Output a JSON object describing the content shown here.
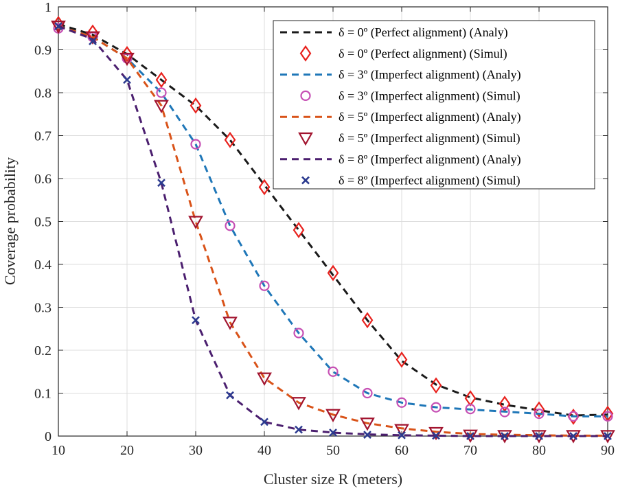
{
  "chart_data": {
    "type": "line",
    "xlabel": "Cluster size R (meters)",
    "ylabel": "Coverage probability",
    "xlim": [
      10,
      90
    ],
    "ylim": [
      0,
      1
    ],
    "grid": true,
    "legend_position": "top-right",
    "x_ticks": [
      "10",
      "20",
      "30",
      "40",
      "50",
      "60",
      "70",
      "80",
      "90"
    ],
    "y_ticks": [
      "0",
      "0.1",
      "0.2",
      "0.3",
      "0.4",
      "0.5",
      "0.6",
      "0.7",
      "0.8",
      "0.9",
      "1"
    ],
    "x": [
      10,
      15,
      20,
      25,
      30,
      35,
      40,
      45,
      50,
      55,
      60,
      65,
      70,
      75,
      80,
      85,
      90
    ],
    "series": [
      {
        "name": "δ = 0º (Perfect alignment) (Analy)",
        "style": "dashed",
        "color": "#1a1a1a",
        "values": [
          0.96,
          0.935,
          0.89,
          0.83,
          0.77,
          0.69,
          0.585,
          0.48,
          0.375,
          0.27,
          0.175,
          0.12,
          0.09,
          0.073,
          0.06,
          0.048,
          0.05
        ]
      },
      {
        "name": "δ = 0º (Perfect alignment) (Simul)",
        "style": "marker",
        "marker": "diamond",
        "color": "#e8201c",
        "values": [
          0.96,
          0.94,
          0.89,
          0.83,
          0.77,
          0.69,
          0.58,
          0.48,
          0.38,
          0.27,
          0.178,
          0.118,
          0.088,
          0.075,
          0.062,
          0.045,
          0.052
        ]
      },
      {
        "name": "δ = 3º (Imperfect alignment) (Analy)",
        "style": "dashed",
        "color": "#1f77b8",
        "values": [
          0.955,
          0.93,
          0.88,
          0.8,
          0.68,
          0.49,
          0.35,
          0.24,
          0.15,
          0.1,
          0.078,
          0.067,
          0.062,
          0.057,
          0.052,
          0.046,
          0.046
        ]
      },
      {
        "name": "δ = 3º (Imperfect alignment) (Simul)",
        "style": "marker",
        "marker": "circle",
        "color": "#c64fb4",
        "values": [
          0.95,
          0.93,
          0.88,
          0.8,
          0.68,
          0.49,
          0.35,
          0.24,
          0.15,
          0.1,
          0.078,
          0.067,
          0.063,
          0.056,
          0.052,
          0.046,
          0.046
        ]
      },
      {
        "name": "δ = 5º (Imperfect alignment) (Analy)",
        "style": "dashed",
        "color": "#d95319",
        "values": [
          0.955,
          0.93,
          0.88,
          0.77,
          0.5,
          0.265,
          0.135,
          0.078,
          0.05,
          0.03,
          0.018,
          0.01,
          0.005,
          0.003,
          0.002,
          0.001,
          0.001
        ]
      },
      {
        "name": "δ = 5º (Imperfect alignment) (Simul)",
        "style": "marker",
        "marker": "triangle-down",
        "color": "#a2142f",
        "values": [
          0.955,
          0.93,
          0.88,
          0.77,
          0.5,
          0.265,
          0.135,
          0.078,
          0.05,
          0.03,
          0.015,
          0.008,
          0.002,
          0.001,
          0.001,
          0.001,
          0.001
        ]
      },
      {
        "name": "δ = 8º (Imperfect alignment) (Analy)",
        "style": "dashed",
        "color": "#4b1f6f",
        "values": [
          0.955,
          0.925,
          0.83,
          0.59,
          0.27,
          0.095,
          0.033,
          0.015,
          0.008,
          0.004,
          0.002,
          0.001,
          0.0,
          0.0,
          0.0,
          0.0,
          0.0
        ]
      },
      {
        "name": "δ = 8º (Imperfect alignment) (Simul)",
        "style": "marker",
        "marker": "x",
        "color": "#2b3a8f",
        "values": [
          0.955,
          0.92,
          0.83,
          0.59,
          0.27,
          0.095,
          0.033,
          0.015,
          0.008,
          0.003,
          0.002,
          0.001,
          0.0,
          0.0,
          0.0,
          0.0,
          0.0
        ]
      }
    ]
  }
}
